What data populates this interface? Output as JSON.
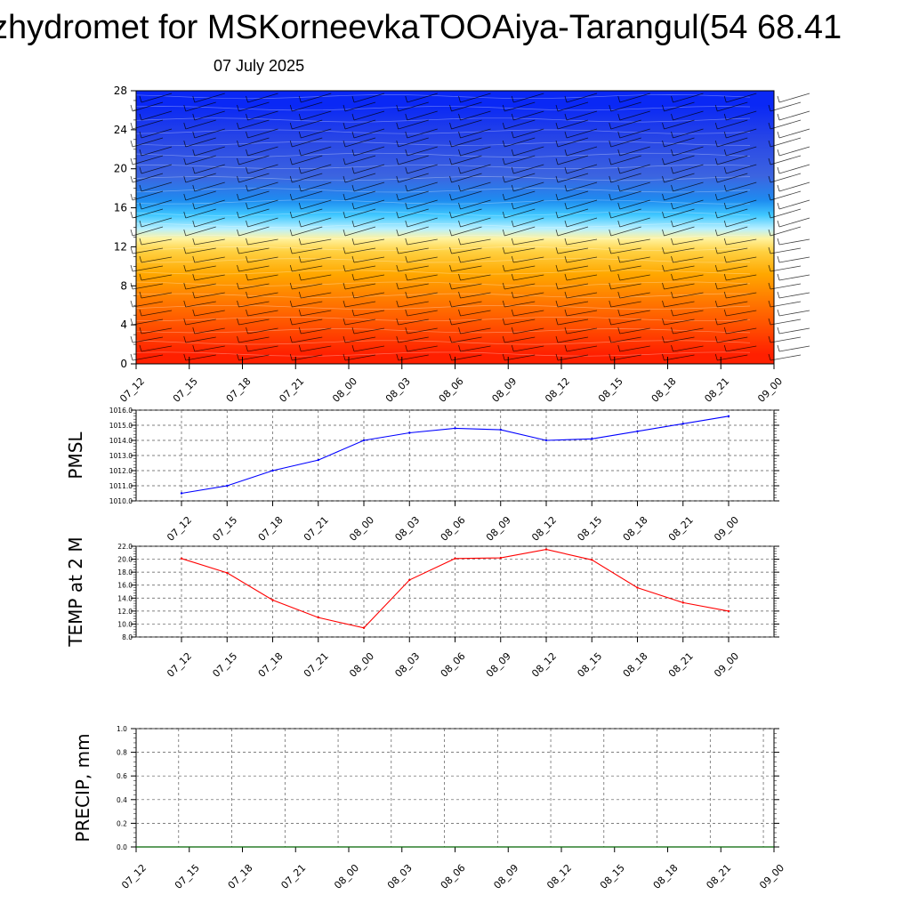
{
  "header": {
    "title": "zhydromet for MSKorneevkaTOOAiya-Tarangul(54 68.41",
    "subtitle": "07 July 2025"
  },
  "colors": {
    "pmsl_line": "#0000ff",
    "temp_line": "#ff0000",
    "precip_line": "#006400",
    "barb": "#000000",
    "grid": "#555555"
  },
  "chart_data": [
    {
      "type": "heatmap",
      "id": "upper_panel",
      "x_ticks": [
        "07_12",
        "07_15",
        "07_18",
        "07_21",
        "08_00",
        "08_03",
        "08_06",
        "08_09",
        "08_12",
        "08_15",
        "08_18",
        "08_21",
        "09_00"
      ],
      "y_ticks": [
        "0",
        "4",
        "8",
        "12",
        "16",
        "20",
        "24",
        "28"
      ],
      "ylim": [
        0,
        28
      ],
      "color_bands": [
        {
          "from": 0,
          "to": 2,
          "color": "#ff2000"
        },
        {
          "from": 2,
          "to": 5,
          "color": "#ff4a00"
        },
        {
          "from": 5,
          "to": 8,
          "color": "#ff7a00"
        },
        {
          "from": 8,
          "to": 10.5,
          "color": "#ffa800"
        },
        {
          "from": 10.5,
          "to": 12.5,
          "color": "#ffd040"
        },
        {
          "from": 12.5,
          "to": 13.2,
          "color": "#fff3a0"
        },
        {
          "from": 13.2,
          "to": 14.5,
          "color": "#b8f0ff"
        },
        {
          "from": 14.5,
          "to": 16,
          "color": "#40c8ff"
        },
        {
          "from": 16,
          "to": 17.5,
          "color": "#1e8cf0"
        },
        {
          "from": 17.5,
          "to": 21,
          "color": "#3c64e0"
        },
        {
          "from": 21,
          "to": 25,
          "color": "#2846e6"
        },
        {
          "from": 25,
          "to": 28,
          "color": "#0a28f5"
        }
      ]
    },
    {
      "type": "line",
      "id": "pmsl",
      "ylabel": "PMSL",
      "x": [
        "07_12",
        "07_15",
        "07_18",
        "07_21",
        "08_00",
        "08_03",
        "08_06",
        "08_09",
        "08_12",
        "08_15",
        "08_18",
        "08_21",
        "09_00"
      ],
      "y_ticks": [
        "1010.0",
        "1011.0",
        "1012.0",
        "1013.0",
        "1014.0",
        "1015.0",
        "1016.0"
      ],
      "ylim": [
        1010,
        1016
      ],
      "series": [
        {
          "values": [
            1010.5,
            1011.0,
            1012.0,
            1012.7,
            1014.0,
            1014.5,
            1014.8,
            1014.7,
            1014.0,
            1014.1,
            1014.6,
            1015.1,
            1015.6
          ]
        }
      ]
    },
    {
      "type": "line",
      "id": "temp",
      "ylabel": "TEMP at 2 M",
      "x": [
        "07_12",
        "07_15",
        "07_18",
        "07_21",
        "08_00",
        "08_03",
        "08_06",
        "08_09",
        "08_12",
        "08_15",
        "08_18",
        "08_21",
        "09_00"
      ],
      "y_ticks": [
        "8.0",
        "10.0",
        "12.0",
        "14.0",
        "16.0",
        "18.0",
        "20.0",
        "22.0"
      ],
      "ylim": [
        8,
        22
      ],
      "series": [
        {
          "values": [
            20.1,
            17.9,
            13.7,
            11.0,
            9.4,
            16.8,
            20.1,
            20.2,
            21.5,
            19.9,
            15.6,
            13.3,
            12.0
          ]
        }
      ]
    },
    {
      "type": "line",
      "id": "precip",
      "ylabel": "PRECIP, mm",
      "x": [
        "07_12",
        "07_15",
        "07_18",
        "07_21",
        "08_00",
        "08_03",
        "08_06",
        "08_09",
        "08_12",
        "08_15",
        "08_18",
        "08_21",
        "09_00"
      ],
      "y_ticks": [
        "0.0",
        "0.2",
        "0.4",
        "0.6",
        "0.8",
        "1.0"
      ],
      "ylim": [
        0,
        1
      ],
      "series": [
        {
          "values": [
            0,
            0,
            0,
            0,
            0,
            0,
            0,
            0,
            0,
            0,
            0,
            0,
            0
          ]
        }
      ]
    }
  ]
}
